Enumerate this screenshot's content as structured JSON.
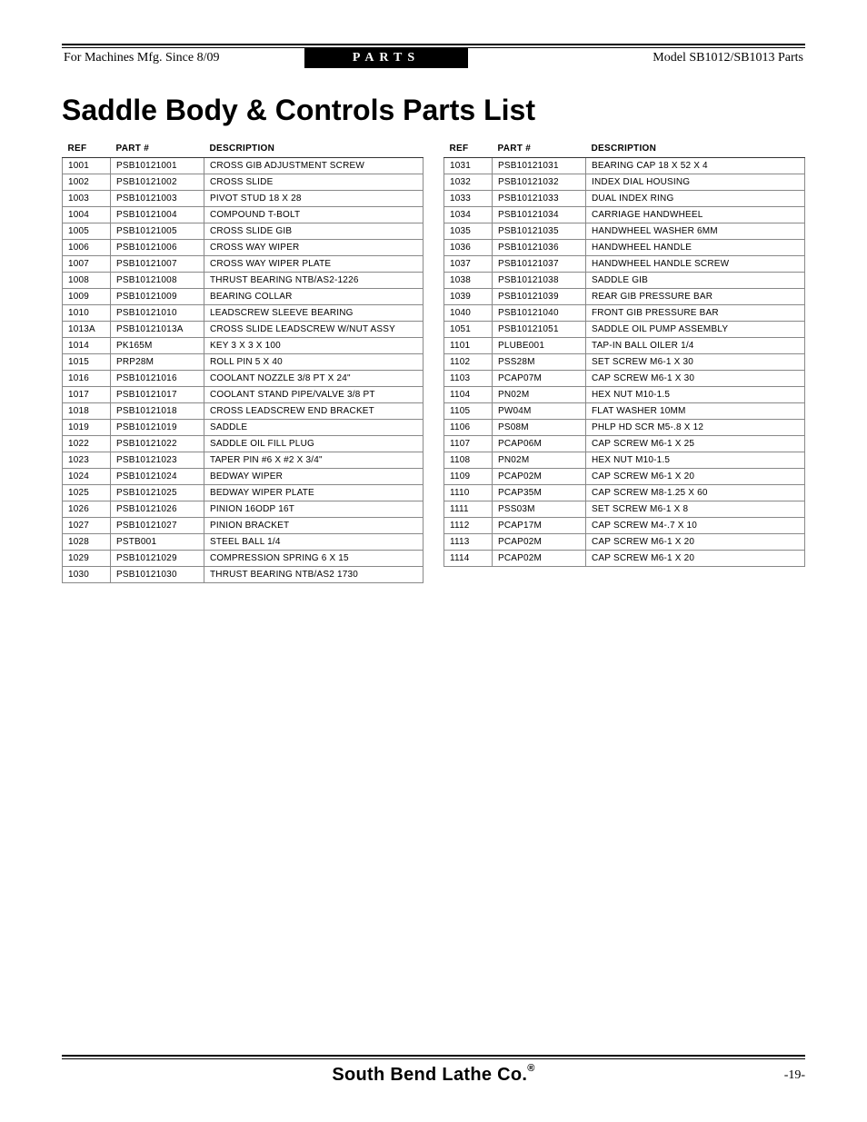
{
  "header": {
    "left": "For Machines Mfg. Since 8/09",
    "mid": "PARTS",
    "right": "Model SB1012/SB1013 Parts"
  },
  "title": "Saddle Body & Controls Parts List",
  "columns": {
    "ref": "REF",
    "part": "PART #",
    "desc": "DESCRIPTION"
  },
  "left_rows": [
    {
      "ref": "1001",
      "part": "PSB10121001",
      "desc": "CROSS GIB ADJUSTMENT SCREW"
    },
    {
      "ref": "1002",
      "part": "PSB10121002",
      "desc": "CROSS SLIDE"
    },
    {
      "ref": "1003",
      "part": "PSB10121003",
      "desc": "PIVOT STUD 18 X 28"
    },
    {
      "ref": "1004",
      "part": "PSB10121004",
      "desc": "COMPOUND T-BOLT"
    },
    {
      "ref": "1005",
      "part": "PSB10121005",
      "desc": "CROSS SLIDE GIB"
    },
    {
      "ref": "1006",
      "part": "PSB10121006",
      "desc": "CROSS WAY WIPER"
    },
    {
      "ref": "1007",
      "part": "PSB10121007",
      "desc": "CROSS WAY WIPER PLATE"
    },
    {
      "ref": "1008",
      "part": "PSB10121008",
      "desc": "THRUST BEARING NTB/AS2-1226"
    },
    {
      "ref": "1009",
      "part": "PSB10121009",
      "desc": "BEARING COLLAR"
    },
    {
      "ref": "1010",
      "part": "PSB10121010",
      "desc": "LEADSCREW SLEEVE BEARING"
    },
    {
      "ref": "1013A",
      "part": "PSB10121013A",
      "desc": "CROSS SLIDE LEADSCREW W/NUT ASSY"
    },
    {
      "ref": "1014",
      "part": "PK165M",
      "desc": "KEY 3 X 3 X 100"
    },
    {
      "ref": "1015",
      "part": "PRP28M",
      "desc": "ROLL PIN 5 X 40"
    },
    {
      "ref": "1016",
      "part": "PSB10121016",
      "desc": "COOLANT NOZZLE 3/8 PT X 24\""
    },
    {
      "ref": "1017",
      "part": "PSB10121017",
      "desc": "COOLANT STAND PIPE/VALVE 3/8 PT"
    },
    {
      "ref": "1018",
      "part": "PSB10121018",
      "desc": "CROSS LEADSCREW END BRACKET"
    },
    {
      "ref": "1019",
      "part": "PSB10121019",
      "desc": "SADDLE"
    },
    {
      "ref": "1022",
      "part": "PSB10121022",
      "desc": "SADDLE OIL FILL PLUG"
    },
    {
      "ref": "1023",
      "part": "PSB10121023",
      "desc": "TAPER PIN #6 X #2 X 3/4\""
    },
    {
      "ref": "1024",
      "part": "PSB10121024",
      "desc": "BEDWAY WIPER"
    },
    {
      "ref": "1025",
      "part": "PSB10121025",
      "desc": "BEDWAY WIPER PLATE"
    },
    {
      "ref": "1026",
      "part": "PSB10121026",
      "desc": "PINION 16ODP 16T"
    },
    {
      "ref": "1027",
      "part": "PSB10121027",
      "desc": "PINION BRACKET"
    },
    {
      "ref": "1028",
      "part": "PSTB001",
      "desc": "STEEL BALL 1/4"
    },
    {
      "ref": "1029",
      "part": "PSB10121029",
      "desc": "COMPRESSION SPRING 6 X 15"
    },
    {
      "ref": "1030",
      "part": "PSB10121030",
      "desc": "THRUST BEARING NTB/AS2 1730"
    }
  ],
  "right_rows": [
    {
      "ref": "1031",
      "part": "PSB10121031",
      "desc": "BEARING CAP 18 X 52 X 4"
    },
    {
      "ref": "1032",
      "part": "PSB10121032",
      "desc": "INDEX DIAL HOUSING"
    },
    {
      "ref": "1033",
      "part": "PSB10121033",
      "desc": "DUAL INDEX RING"
    },
    {
      "ref": "1034",
      "part": "PSB10121034",
      "desc": "CARRIAGE HANDWHEEL"
    },
    {
      "ref": "1035",
      "part": "PSB10121035",
      "desc": "HANDWHEEL WASHER 6MM"
    },
    {
      "ref": "1036",
      "part": "PSB10121036",
      "desc": "HANDWHEEL HANDLE"
    },
    {
      "ref": "1037",
      "part": "PSB10121037",
      "desc": "HANDWHEEL HANDLE SCREW"
    },
    {
      "ref": "1038",
      "part": "PSB10121038",
      "desc": "SADDLE GIB"
    },
    {
      "ref": "1039",
      "part": "PSB10121039",
      "desc": "REAR GIB PRESSURE BAR"
    },
    {
      "ref": "1040",
      "part": "PSB10121040",
      "desc": "FRONT GIB PRESSURE BAR"
    },
    {
      "ref": "1051",
      "part": "PSB10121051",
      "desc": "SADDLE OIL PUMP ASSEMBLY"
    },
    {
      "ref": "1101",
      "part": "PLUBE001",
      "desc": "TAP-IN BALL OILER 1/4"
    },
    {
      "ref": "1102",
      "part": "PSS28M",
      "desc": "SET SCREW M6-1 X 30"
    },
    {
      "ref": "1103",
      "part": "PCAP07M",
      "desc": "CAP SCREW M6-1 X 30"
    },
    {
      "ref": "1104",
      "part": "PN02M",
      "desc": "HEX NUT M10-1.5"
    },
    {
      "ref": "1105",
      "part": "PW04M",
      "desc": "FLAT WASHER 10MM"
    },
    {
      "ref": "1106",
      "part": "PS08M",
      "desc": "PHLP HD SCR M5-.8 X 12"
    },
    {
      "ref": "1107",
      "part": "PCAP06M",
      "desc": "CAP SCREW M6-1 X 25"
    },
    {
      "ref": "1108",
      "part": "PN02M",
      "desc": "HEX NUT M10-1.5"
    },
    {
      "ref": "1109",
      "part": "PCAP02M",
      "desc": "CAP SCREW M6-1 X 20"
    },
    {
      "ref": "1110",
      "part": "PCAP35M",
      "desc": "CAP SCREW M8-1.25 X 60"
    },
    {
      "ref": "1111",
      "part": "PSS03M",
      "desc": "SET SCREW M6-1 X 8"
    },
    {
      "ref": "1112",
      "part": "PCAP17M",
      "desc": "CAP SCREW M4-.7 X 10"
    },
    {
      "ref": "1113",
      "part": "PCAP02M",
      "desc": "CAP SCREW M6-1 X 20"
    },
    {
      "ref": "1114",
      "part": "PCAP02M",
      "desc": "CAP SCREW M6-1 X 20"
    }
  ],
  "footer": {
    "brand": "South Bend Lathe Co.",
    "page": "-19-"
  }
}
